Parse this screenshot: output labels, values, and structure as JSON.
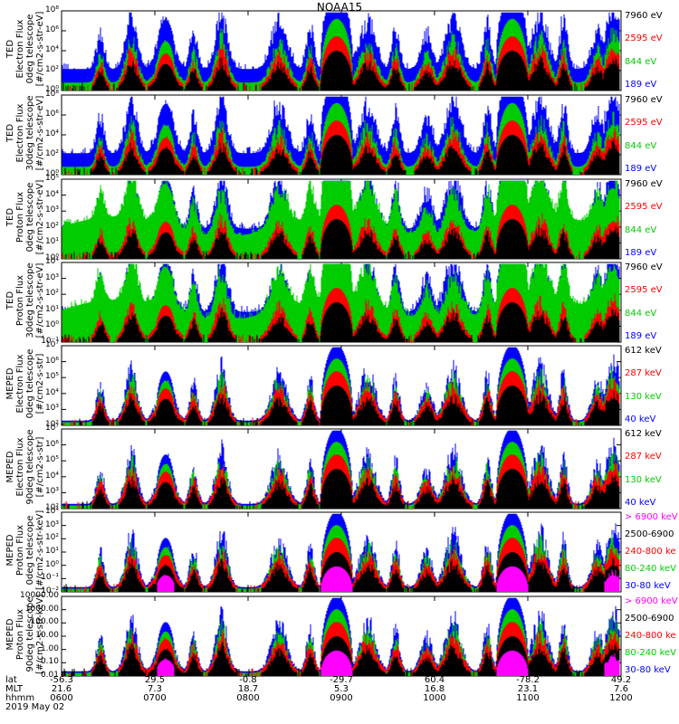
{
  "title": "NOAA15",
  "panels": [
    {
      "id": "ted-e-0",
      "ylabel": [
        "TED",
        "Electron Flux",
        "0deg telescope",
        "[#/cm2-s-str-eV]"
      ],
      "yticks": [
        "10⁸",
        "10⁶",
        "10⁴",
        "10²",
        "10⁰"
      ],
      "legend": [
        {
          "text": "7960 eV",
          "color": "#000000"
        },
        {
          "text": "2595 eV",
          "color": "#ff0000"
        },
        {
          "text": "844 eV",
          "color": "#00cc00"
        },
        {
          "text": "189 eV",
          "color": "#0000ff"
        }
      ]
    },
    {
      "id": "ted-e-30",
      "ylabel": [
        "TED",
        "Electron Flux",
        "30deg telescope",
        "[#/cm2-s-str-eV]"
      ],
      "yticks": [
        "10⁸",
        "10⁶",
        "10⁴",
        "10²",
        "10⁰"
      ],
      "legend": [
        {
          "text": "7960 eV",
          "color": "#000000"
        },
        {
          "text": "2595 eV",
          "color": "#ff0000"
        },
        {
          "text": "844 eV",
          "color": "#00cc00"
        },
        {
          "text": "189 eV",
          "color": "#0000ff"
        }
      ]
    },
    {
      "id": "ted-p-0",
      "ylabel": [
        "TED",
        "Proton Flux",
        "0deg telescope",
        "[#/cm2-s-str-eV]"
      ],
      "yticks": [
        "10⁵",
        "10⁴",
        "10³",
        "10²",
        "10¹",
        "10⁰"
      ],
      "legend": [
        {
          "text": "7960 eV",
          "color": "#000000"
        },
        {
          "text": "2595 eV",
          "color": "#ff0000"
        },
        {
          "text": "844 eV",
          "color": "#00cc00"
        },
        {
          "text": "189 eV",
          "color": "#0000ff"
        }
      ]
    },
    {
      "id": "ted-p-30",
      "ylabel": [
        "TED",
        "Proton Flux",
        "30deg telescope",
        "[#/cm2-s-str-eV]"
      ],
      "yticks": [
        "10⁴",
        "10³",
        "10²",
        "10¹",
        "10⁰",
        "10⁻¹"
      ],
      "legend": [
        {
          "text": "7960 eV",
          "color": "#000000"
        },
        {
          "text": "2595 eV",
          "color": "#ff0000"
        },
        {
          "text": "844 eV",
          "color": "#00cc00"
        },
        {
          "text": "189 eV",
          "color": "#0000ff"
        }
      ]
    },
    {
      "id": "meped-e-0",
      "ylabel": [
        "MEPED",
        "Electron Flux",
        "0deg telescope",
        "[#/cm2-s-str]"
      ],
      "yticks": [
        "10⁷",
        "10⁶",
        "10⁵",
        "10⁴",
        "10³",
        "10²"
      ],
      "legend": [
        {
          "text": "612 keV",
          "color": "#000000"
        },
        {
          "text": "287 keV",
          "color": "#ff0000"
        },
        {
          "text": "130 keV",
          "color": "#00cc00"
        },
        {
          "text": "40 keV",
          "color": "#0000ff"
        }
      ]
    },
    {
      "id": "meped-e-90",
      "ylabel": [
        "MEPED",
        "Electron Flux",
        "90deg telescope",
        "[#/cm2-s-str]"
      ],
      "yticks": [
        "10⁷",
        "10⁶",
        "10⁵",
        "10⁴",
        "10³",
        "10²"
      ],
      "legend": [
        {
          "text": "612 keV",
          "color": "#000000"
        },
        {
          "text": "287 keV",
          "color": "#ff0000"
        },
        {
          "text": "130 keV",
          "color": "#00cc00"
        },
        {
          "text": "40 keV",
          "color": "#0000ff"
        }
      ]
    },
    {
      "id": "meped-p-0",
      "ylabel": [
        "MEPED",
        "Proton Flux",
        "0deg telescope",
        "[#/cm2-s-str-keV]"
      ],
      "yticks": [
        "10⁴",
        "10³",
        "10²",
        "10¹",
        "10⁰",
        "10⁻¹",
        "10⁻²"
      ],
      "legend": [
        {
          "text": "> 6900 keV",
          "color": "#ff00ff"
        },
        {
          "text": "2500-6900",
          "color": "#000000"
        },
        {
          "text": "240-800 ke",
          "color": "#ff0000"
        },
        {
          "text": "80-240 keV",
          "color": "#00cc00"
        },
        {
          "text": "30-80 keV",
          "color": "#0000ff"
        }
      ]
    },
    {
      "id": "meped-p-90",
      "ylabel": [
        "MEPED",
        "Proton Flux",
        "90deg telescope",
        "[#/cm2-s-str-keV]"
      ],
      "yticks": [
        "10000.00",
        "1000.00",
        "100.00",
        "10.00",
        "1.00",
        "0.10",
        "0.01"
      ],
      "legend": [
        {
          "text": "> 6900 keV",
          "color": "#ff00ff"
        },
        {
          "text": "2500-6900",
          "color": "#000000"
        },
        {
          "text": "240-800 ke",
          "color": "#ff0000"
        },
        {
          "text": "80-240 keV",
          "color": "#00cc00"
        },
        {
          "text": "30-80 keV",
          "color": "#0000ff"
        }
      ]
    }
  ],
  "footer": {
    "row_labels": [
      "lat",
      "MLT",
      "hhmm",
      "2019 May 02"
    ],
    "lat": [
      "-56.3",
      "29.5",
      "-0.8",
      "-29.7",
      "60.4",
      "-78.2",
      "49.2"
    ],
    "mlt": [
      "21.6",
      "7.3",
      "18.7",
      "5.3",
      "16.8",
      "23.1",
      "7.6"
    ],
    "hhmm": [
      "0600",
      "0700",
      "0800",
      "0900",
      "1000",
      "1100",
      "1200"
    ]
  },
  "chart_data": {
    "type": "line",
    "title": "NOAA15",
    "x_time_range": [
      "0600",
      "1200"
    ],
    "x_ticks": [
      "0600",
      "0700",
      "0800",
      "0900",
      "1000",
      "1100",
      "1200"
    ],
    "pass_centers_hhmm": [
      "0625",
      "0645",
      "0707",
      "0725",
      "0743",
      "0820",
      "0840",
      "0857",
      "0917",
      "0935",
      "0955",
      "1012",
      "1034",
      "1050",
      "1108",
      "1123",
      "1145",
      "1155"
    ],
    "series_colors": {
      "blue": "#0000ff",
      "green": "#00cc00",
      "red": "#ff0000",
      "black": "#000000",
      "magenta": "#ff00ff"
    },
    "grid": false
  }
}
